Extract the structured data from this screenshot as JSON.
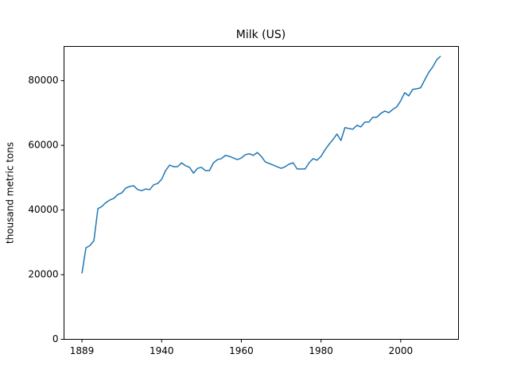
{
  "chart_data": {
    "type": "line",
    "title": "Milk (US)",
    "y_label": "thousand metric tons",
    "categories": [
      "1889",
      null,
      null,
      null,
      null,
      null,
      null,
      null,
      null,
      null,
      null,
      null,
      null,
      null,
      null,
      null,
      null,
      null,
      null,
      null,
      "1940",
      null,
      null,
      null,
      null,
      null,
      null,
      null,
      null,
      null,
      null,
      null,
      null,
      null,
      null,
      null,
      null,
      null,
      null,
      null,
      "1960",
      null,
      null,
      null,
      null,
      null,
      null,
      null,
      null,
      null,
      null,
      null,
      null,
      null,
      null,
      null,
      null,
      null,
      null,
      null,
      "1980",
      null,
      null,
      null,
      null,
      null,
      null,
      null,
      null,
      null,
      null,
      null,
      null,
      null,
      null,
      null,
      null,
      null,
      null,
      null,
      "2000",
      null,
      null,
      null,
      null,
      null,
      null,
      null,
      null,
      null,
      null
    ],
    "values": [
      20400,
      28300,
      29000,
      30500,
      40400,
      41100,
      42300,
      43100,
      43600,
      44800,
      45300,
      46800,
      47300,
      47500,
      46300,
      46000,
      46500,
      46300,
      47800,
      48200,
      49500,
      52200,
      53900,
      53400,
      53400,
      54600,
      53700,
      53200,
      51400,
      52900,
      53200,
      52200,
      52200,
      54600,
      55600,
      55900,
      56900,
      56600,
      56100,
      55600,
      56100,
      57100,
      57400,
      56900,
      57800,
      56600,
      54900,
      54400,
      53900,
      53400,
      52900,
      53400,
      54200,
      54600,
      52700,
      52700,
      52700,
      54600,
      55900,
      55400,
      56600,
      58600,
      60300,
      61800,
      63500,
      61500,
      65500,
      65200,
      65000,
      66200,
      65700,
      67200,
      67200,
      68700,
      68700,
      69900,
      70600,
      70100,
      71100,
      71900,
      73800,
      76300,
      75300,
      77300,
      77500,
      77800,
      80200,
      82500,
      84200,
      86400,
      87600
    ],
    "color": "#1f77b4",
    "ylim": [
      0,
      90600
    ],
    "yticks": [
      0,
      20000,
      40000,
      60000,
      80000
    ]
  }
}
